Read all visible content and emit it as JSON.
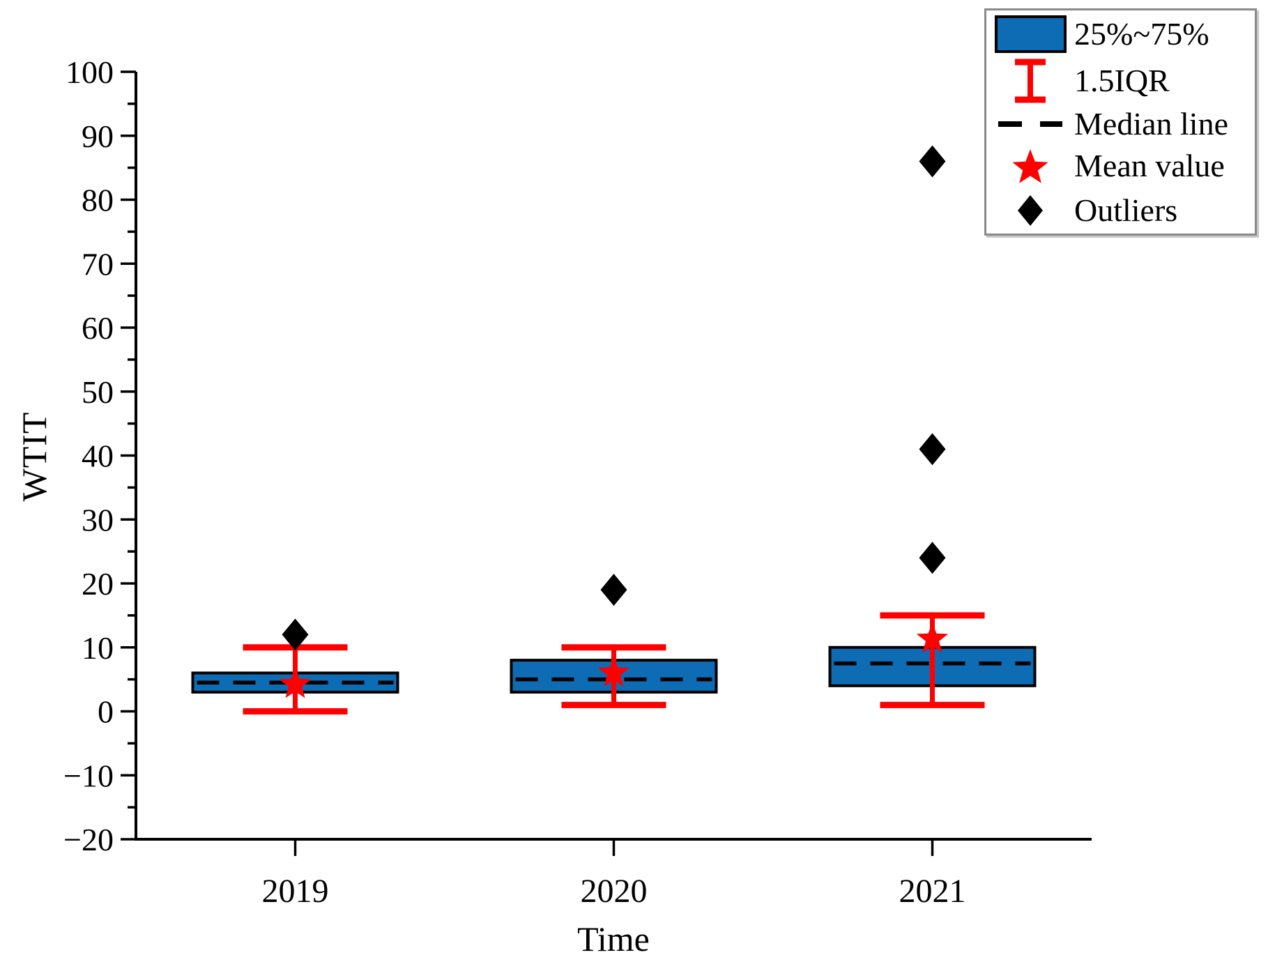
{
  "figure": {
    "ylabel": "WTIT",
    "xlabel": "Time"
  },
  "legend": {
    "items": [
      {
        "icon": "box-swatch-icon",
        "label": "25%~75%"
      },
      {
        "icon": "error-bar-icon",
        "label": "1.5IQR"
      },
      {
        "icon": "dashed-line-icon",
        "label": "Median line"
      },
      {
        "icon": "star-icon",
        "label": "Mean value"
      },
      {
        "icon": "diamond-icon",
        "label": "Outliers"
      }
    ]
  },
  "colors": {
    "box_fill": "#0D6CB4",
    "box_border": "#000000",
    "whisker": "#FF0000",
    "median": "#000000",
    "mean": "#FF0000",
    "outlier": "#000000",
    "axis": "#000000",
    "legend_border": "#8A8A8A"
  },
  "chart_data": {
    "type": "box",
    "title": "",
    "xlabel": "Time",
    "ylabel": "WTIT",
    "categories": [
      "2019",
      "2020",
      "2021"
    ],
    "ylim": [
      -20,
      100
    ],
    "ytick_major": 10,
    "ytick_minor": 5,
    "grid": false,
    "legend_position": "top-right",
    "boxes": [
      {
        "category": "2019",
        "whisker_low": 0,
        "q1": 3,
        "median": 4.5,
        "q3": 6,
        "whisker_high": 10,
        "mean": 4.2,
        "outliers": [
          12
        ]
      },
      {
        "category": "2020",
        "whisker_low": 1,
        "q1": 3,
        "median": 5,
        "q3": 8,
        "whisker_high": 10,
        "mean": 6,
        "outliers": [
          19
        ]
      },
      {
        "category": "2021",
        "whisker_low": 1,
        "q1": 4,
        "median": 7.5,
        "q3": 10,
        "whisker_high": 15,
        "mean": 11.3,
        "outliers": [
          24,
          41,
          86
        ]
      }
    ]
  }
}
